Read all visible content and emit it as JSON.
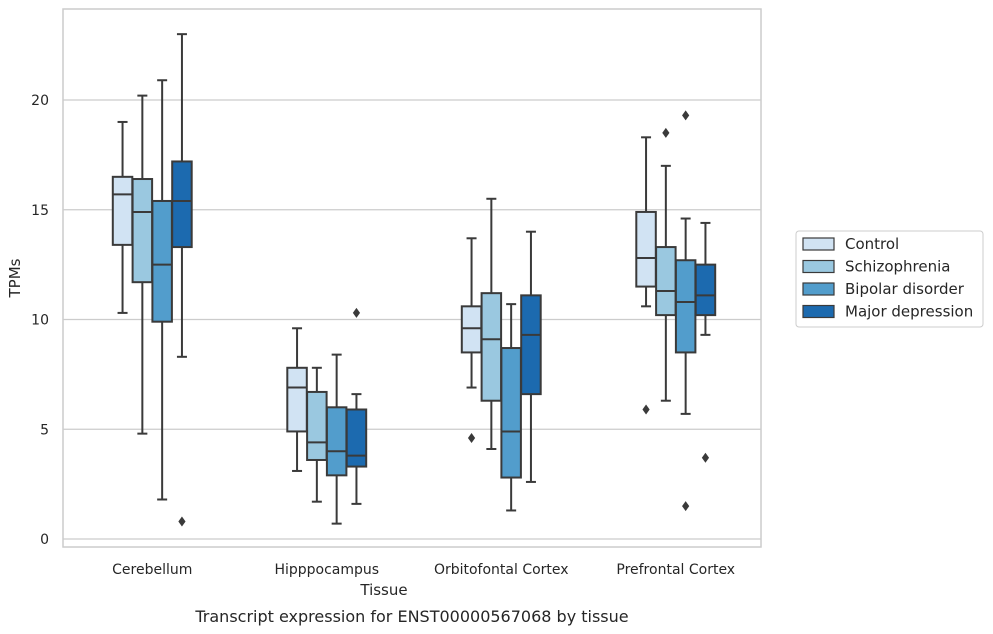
{
  "caption": "Transcript expression for ENST00000567068 by tissue",
  "chart_data": {
    "type": "box",
    "title": "",
    "xlabel": "Tissue",
    "ylabel": "TPMs",
    "ylim": [
      -0.3,
      24
    ],
    "yticks": [
      0,
      5,
      10,
      15,
      20
    ],
    "grid": "horizontal",
    "legend_position": "right",
    "categories": [
      "Cerebellum",
      "Hipppocampus",
      "Orbitofontal Cortex",
      "Prefrontal Cortex"
    ],
    "series": [
      {
        "name": "Control",
        "color": "#d1e3f3",
        "boxes": [
          {
            "whislo": 10.3,
            "q1": 13.4,
            "med": 15.7,
            "q3": 16.5,
            "whishi": 19.0,
            "fliers": []
          },
          {
            "whislo": 3.1,
            "q1": 4.9,
            "med": 6.9,
            "q3": 7.8,
            "whishi": 9.6,
            "fliers": []
          },
          {
            "whislo": 6.9,
            "q1": 8.5,
            "med": 9.6,
            "q3": 10.6,
            "whishi": 13.7,
            "fliers": [
              4.6
            ]
          },
          {
            "whislo": 10.6,
            "q1": 11.5,
            "med": 12.8,
            "q3": 14.9,
            "whishi": 18.3,
            "fliers": [
              5.9
            ]
          }
        ]
      },
      {
        "name": "Schizophrenia",
        "color": "#9ac8e0",
        "boxes": [
          {
            "whislo": 4.8,
            "q1": 11.7,
            "med": 14.9,
            "q3": 16.4,
            "whishi": 20.2,
            "fliers": []
          },
          {
            "whislo": 1.7,
            "q1": 3.6,
            "med": 4.4,
            "q3": 6.7,
            "whishi": 7.8,
            "fliers": []
          },
          {
            "whislo": 4.1,
            "q1": 6.3,
            "med": 9.1,
            "q3": 11.2,
            "whishi": 15.5,
            "fliers": []
          },
          {
            "whislo": 6.3,
            "q1": 10.2,
            "med": 11.3,
            "q3": 13.3,
            "whishi": 17.0,
            "fliers": [
              18.5
            ]
          }
        ]
      },
      {
        "name": "Bipolar disorder",
        "color": "#529dcc",
        "boxes": [
          {
            "whislo": 1.8,
            "q1": 9.9,
            "med": 12.5,
            "q3": 15.4,
            "whishi": 20.9,
            "fliers": []
          },
          {
            "whislo": 0.7,
            "q1": 2.9,
            "med": 4.0,
            "q3": 6.0,
            "whishi": 8.4,
            "fliers": []
          },
          {
            "whislo": 1.3,
            "q1": 2.8,
            "med": 4.9,
            "q3": 8.7,
            "whishi": 10.7,
            "fliers": []
          },
          {
            "whislo": 5.7,
            "q1": 8.5,
            "med": 10.8,
            "q3": 12.7,
            "whishi": 14.6,
            "fliers": [
              1.5,
              19.3
            ]
          }
        ]
      },
      {
        "name": "Major depression",
        "color": "#1c6aaf",
        "boxes": [
          {
            "whislo": 8.3,
            "q1": 13.3,
            "med": 15.4,
            "q3": 17.2,
            "whishi": 23.0,
            "fliers": [
              0.8
            ]
          },
          {
            "whislo": 1.6,
            "q1": 3.3,
            "med": 3.8,
            "q3": 5.9,
            "whishi": 6.6,
            "fliers": [
              10.3
            ]
          },
          {
            "whislo": 2.6,
            "q1": 6.6,
            "med": 9.3,
            "q3": 11.1,
            "whishi": 14.0,
            "fliers": []
          },
          {
            "whislo": 9.3,
            "q1": 10.2,
            "med": 11.1,
            "q3": 12.5,
            "whishi": 14.4,
            "fliers": [
              3.7
            ]
          }
        ]
      }
    ]
  }
}
